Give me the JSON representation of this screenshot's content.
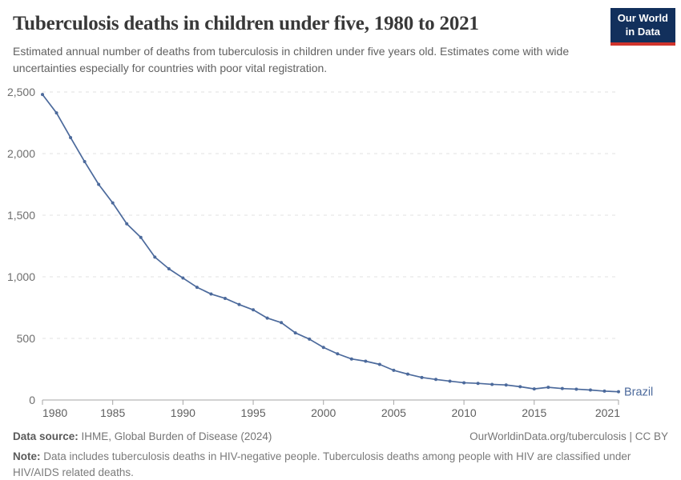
{
  "header": {
    "title": "Tuberculosis deaths in children under five, 1980 to 2021",
    "subtitle": "Estimated annual number of deaths from tuberculosis in children under five years old. Estimates come with wide uncertainties especially for countries with poor vital registration.",
    "logo": {
      "line1": "Our World",
      "line2": "in Data"
    }
  },
  "chart_data": {
    "type": "line",
    "title": "Tuberculosis deaths in children under five, 1980 to 2021",
    "x": [
      1980,
      1981,
      1982,
      1983,
      1984,
      1985,
      1986,
      1987,
      1988,
      1989,
      1990,
      1991,
      1992,
      1993,
      1994,
      1995,
      1996,
      1997,
      1998,
      1999,
      2000,
      2001,
      2002,
      2003,
      2004,
      2005,
      2006,
      2007,
      2008,
      2009,
      2010,
      2011,
      2012,
      2013,
      2014,
      2015,
      2016,
      2017,
      2018,
      2019,
      2020,
      2021
    ],
    "series": [
      {
        "name": "Brazil",
        "color": "#4C6A9C",
        "values": [
          2480,
          2330,
          2130,
          1935,
          1750,
          1600,
          1430,
          1320,
          1160,
          1065,
          990,
          915,
          860,
          825,
          775,
          732,
          665,
          628,
          545,
          494,
          427,
          375,
          333,
          315,
          289,
          241,
          210,
          183,
          167,
          153,
          140,
          135,
          127,
          122,
          108,
          90,
          103,
          93,
          88,
          81,
          72,
          67
        ]
      }
    ],
    "xlabel": "",
    "ylabel": "",
    "ylim": [
      0,
      2500
    ],
    "yticks": [
      0,
      500,
      1000,
      1500,
      2000,
      2500
    ],
    "ytick_labels": [
      "0",
      "500",
      "1,000",
      "1,500",
      "2,000",
      "2,500"
    ],
    "xticks": [
      1980,
      1985,
      1990,
      1995,
      2000,
      2005,
      2010,
      2015,
      2021
    ],
    "xtick_labels": [
      "1980",
      "1985",
      "1990",
      "1995",
      "2000",
      "2005",
      "2010",
      "2015",
      "2021"
    ],
    "grid": "horizontal-dashed",
    "legend_position": "end-of-line-label",
    "end_label": "Brazil"
  },
  "footer": {
    "source_label": "Data source:",
    "source_value": " IHME, Global Burden of Disease (2024)",
    "credit": "OurWorldinData.org/tuberculosis | CC BY",
    "note_label": "Note:",
    "note_value": " Data includes tuberculosis deaths in HIV-negative people. Tuberculosis deaths among people with HIV are classified under HIV/AIDS related deaths."
  },
  "colors": {
    "line": "#4C6A9C",
    "grid": "#e2e2e2",
    "axis": "#a5a5a5",
    "y_tick_text": "#6e6e6e",
    "x_tick_text": "#5f5f5f",
    "logo_bg": "#12305c",
    "logo_red": "#d0342c",
    "title_text": "#383838"
  }
}
